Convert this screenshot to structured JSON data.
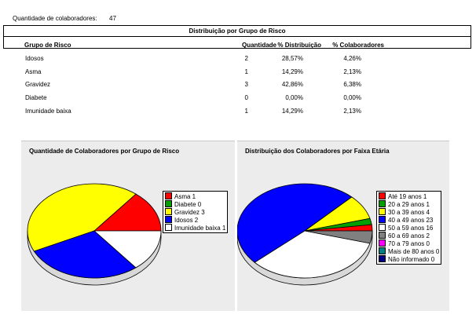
{
  "summary": {
    "label": "Quantidade de colaboradores:",
    "value": "47"
  },
  "table": {
    "title": "Distribuição por Grupo de Risco",
    "headers": {
      "grupo": "Grupo de Risco",
      "quantidade": "Quantidade",
      "distribuicao": "% Distribuição",
      "colaboradores": "% Colaboradores"
    },
    "rows": [
      {
        "grupo": "Idosos",
        "quantidade": "2",
        "distribuicao": "28,57%",
        "colaboradores": "4,26%"
      },
      {
        "grupo": "Asma",
        "quantidade": "1",
        "distribuicao": "14,29%",
        "colaboradores": "2,13%"
      },
      {
        "grupo": "Gravidez",
        "quantidade": "3",
        "distribuicao": "42,86%",
        "colaboradores": "6,38%"
      },
      {
        "grupo": "Diabete",
        "quantidade": "0",
        "distribuicao": "0,00%",
        "colaboradores": "0,00%"
      },
      {
        "grupo": "Imunidade baixa",
        "quantidade": "1",
        "distribuicao": "14,29%",
        "colaboradores": "2,13%"
      }
    ]
  },
  "chart_data": [
    {
      "type": "pie",
      "title": "Quantidade de Colaboradores por Grupo de Risco",
      "legend_position": "right",
      "slices": [
        {
          "label": "Asma 1",
          "value": 1,
          "color": "#ff0000"
        },
        {
          "label": "Diabete 0",
          "value": 0,
          "color": "#00a000"
        },
        {
          "label": "Gravidez 3",
          "value": 3,
          "color": "#ffff00"
        },
        {
          "label": "Idosos 2",
          "value": 2,
          "color": "#0000ff"
        },
        {
          "label": "Imunidade baixa 1",
          "value": 1,
          "color": "#ffffff"
        }
      ]
    },
    {
      "type": "pie",
      "title": "Distribuição dos Colaboradores por Faixa Etária",
      "legend_position": "right",
      "slices": [
        {
          "label": "Até 19 anos 1",
          "value": 1,
          "color": "#ff0000"
        },
        {
          "label": "20 a 29 anos 1",
          "value": 1,
          "color": "#00a000"
        },
        {
          "label": "30 a 39 anos 4",
          "value": 4,
          "color": "#ffff00"
        },
        {
          "label": "40 a 49 anos 23",
          "value": 23,
          "color": "#0000ff"
        },
        {
          "label": "50 a 59 anos 16",
          "value": 16,
          "color": "#ffffff"
        },
        {
          "label": "60 a 69 anos 2",
          "value": 2,
          "color": "#808080"
        },
        {
          "label": "70 a 79 anos 0",
          "value": 0,
          "color": "#ff00ff"
        },
        {
          "label": "Mais de 80 anos 0",
          "value": 0,
          "color": "#008080"
        },
        {
          "label": "Não informado 0",
          "value": 0,
          "color": "#000080"
        }
      ]
    }
  ]
}
